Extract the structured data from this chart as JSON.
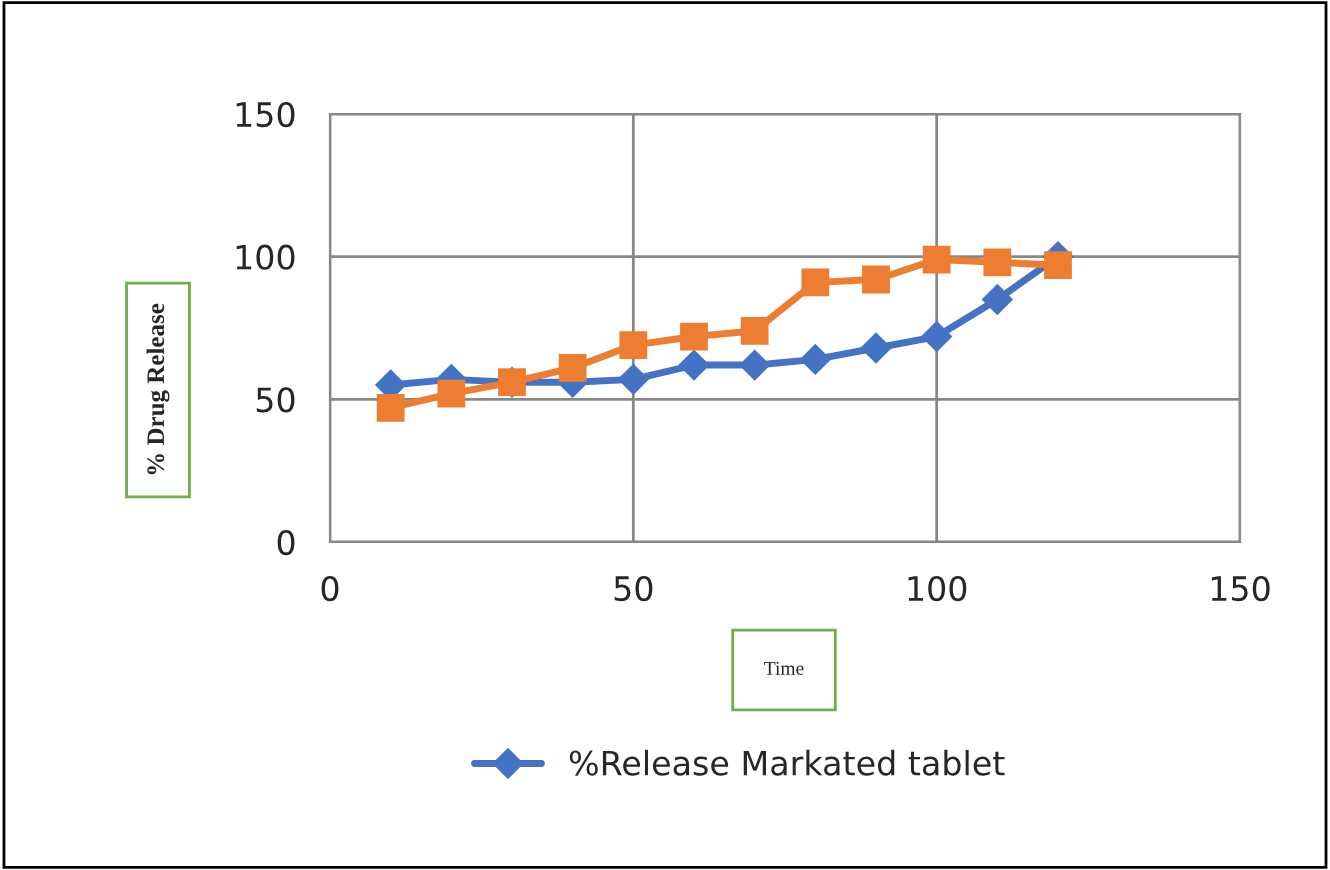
{
  "chart_data": {
    "type": "line",
    "xlabel": "Time",
    "ylabel": "% Drug Release",
    "series": [
      {
        "name": "%Release Markated tablet",
        "color": "#4472c4",
        "marker": "diamond",
        "x": [
          10,
          20,
          30,
          40,
          50,
          60,
          70,
          80,
          90,
          100,
          110,
          120
        ],
        "values": [
          55,
          57,
          56,
          56,
          57,
          62,
          62,
          64,
          68,
          72,
          85,
          100
        ]
      },
      {
        "color": "#ed7d31",
        "marker": "square",
        "x": [
          10,
          20,
          30,
          40,
          50,
          60,
          70,
          80,
          90,
          100,
          110,
          120
        ],
        "values": [
          47,
          52,
          56,
          61,
          69,
          72,
          74,
          91,
          92,
          99,
          98,
          97
        ]
      }
    ],
    "xlim": [
      0,
      150
    ],
    "xticks": [
      0,
      50,
      100,
      150
    ],
    "ylim": [
      0,
      150
    ],
    "yticks": [
      0,
      50,
      100,
      150
    ],
    "grid": true,
    "legend": "bottom"
  }
}
